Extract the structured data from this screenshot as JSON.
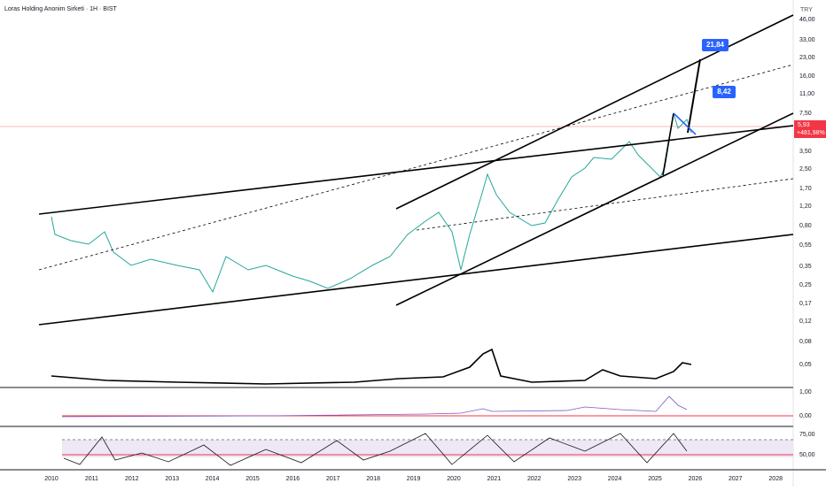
{
  "header": {
    "title": "Loras Holding Anonim Sirketi · 1H · BIST",
    "currency": "TRY"
  },
  "price_axis": [
    "46,00",
    "33,00",
    "23,00",
    "16,00",
    "11,00",
    "7,50",
    "3,50",
    "2,50",
    "1,70",
    "1,20",
    "0,80",
    "0,55",
    "0,35",
    "0,25",
    "0,17",
    "0,12",
    "0,08",
    "0,05"
  ],
  "last_price": {
    "price": "5,93",
    "change": "+481,98%"
  },
  "annotations": [
    "21,84",
    "8,42"
  ],
  "macd_axis": [
    "1,00",
    "0,00"
  ],
  "rsi_axis": [
    "75,00",
    "50,00"
  ],
  "time_axis": [
    "2010",
    "2011",
    "2012",
    "2013",
    "2014",
    "2015",
    "2016",
    "2017",
    "2018",
    "2019",
    "2020",
    "2021",
    "2022",
    "2023",
    "2024",
    "2025",
    "2026",
    "2027",
    "2028"
  ]
}
